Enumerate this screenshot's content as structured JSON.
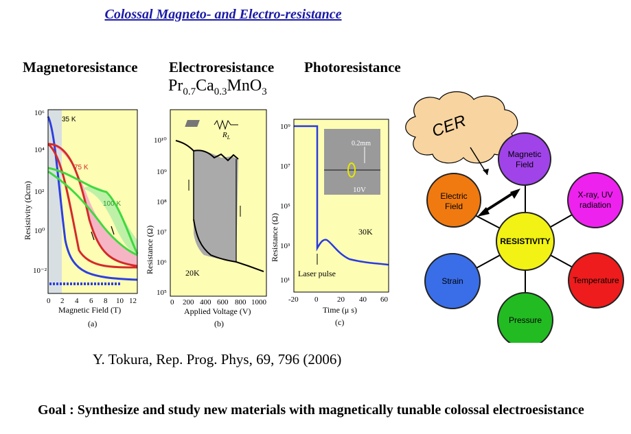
{
  "title": "Colossal Magneto- and Electro-resistance",
  "headings": [
    "Magnetoresistance",
    "Electroresistance",
    "Photoresistance"
  ],
  "formula": {
    "a": "Pr",
    "a_sub": "0.7",
    "b": "Ca",
    "b_sub": "0.3",
    "c": "MnO",
    "c_sub": "3"
  },
  "panel_a": {
    "ylabel": "Resistivity (Ωcm)",
    "xlabel": "Magnetic Field (T)",
    "caption": "(a)",
    "xticks": [
      "0",
      "2",
      "4",
      "6",
      "8",
      "10",
      "12"
    ],
    "yticks": [
      "10⁶",
      "10⁴",
      "10²",
      "10⁰",
      "10⁻²"
    ],
    "labels": [
      "35 K",
      "75 K",
      "100 K"
    ],
    "colors": {
      "bg": "#fdfdb4",
      "c35": "#2d3fe0",
      "c75": "#d42a2a",
      "c100": "#3fd93f",
      "fill75": "#f4a8c8",
      "fill100": "#bff0a8"
    }
  },
  "panel_b": {
    "ylabel": "Resistance (Ω)",
    "xlabel": "Applied Voltage (V)",
    "caption": "(b)",
    "xticks": [
      "0",
      "200",
      "400",
      "600",
      "800",
      "1000"
    ],
    "yticks": [
      "10¹⁰",
      "10⁹",
      "10⁸",
      "10⁷",
      "10⁶",
      "10⁵"
    ],
    "temp": "20K",
    "resistor": "R",
    "resistor_sub": "L"
  },
  "panel_c": {
    "ylabel": "Resistance (Ω)",
    "xlabel": "Time (μ s)",
    "caption": "(c)",
    "xticks": [
      "-20",
      "0",
      "20",
      "40",
      "60"
    ],
    "yticks": [
      "10⁹",
      "10⁷",
      "10⁵",
      "10³",
      "10¹"
    ],
    "scale": "0.2mm",
    "voltage": "10V",
    "temp": "30K",
    "annotation": "Laser pulse"
  },
  "diagram": {
    "cloud": "CER",
    "center": "RESISTIVITY",
    "nodes": [
      {
        "label1": "Magnetic",
        "label2": "Field",
        "color": "#a044ea"
      },
      {
        "label1": "Electric",
        "label2": "Field",
        "color": "#f07a10"
      },
      {
        "label1": "X-ray, UV",
        "label2": "radiation",
        "color": "#ee22ee"
      },
      {
        "label1": "Strain",
        "label2": "",
        "color": "#3a6ee8"
      },
      {
        "label1": "Temperature",
        "label2": "",
        "color": "#ee1c1c"
      },
      {
        "label1": "Pressure",
        "label2": "",
        "color": "#22bb22"
      }
    ],
    "center_color": "#f2f214"
  },
  "citation": "Y. Tokura, Rep. Prog. Phys, 69, 796 (2006)",
  "goal": "Goal :  Synthesize and study new materials with magnetically tunable colossal electroesistance"
}
